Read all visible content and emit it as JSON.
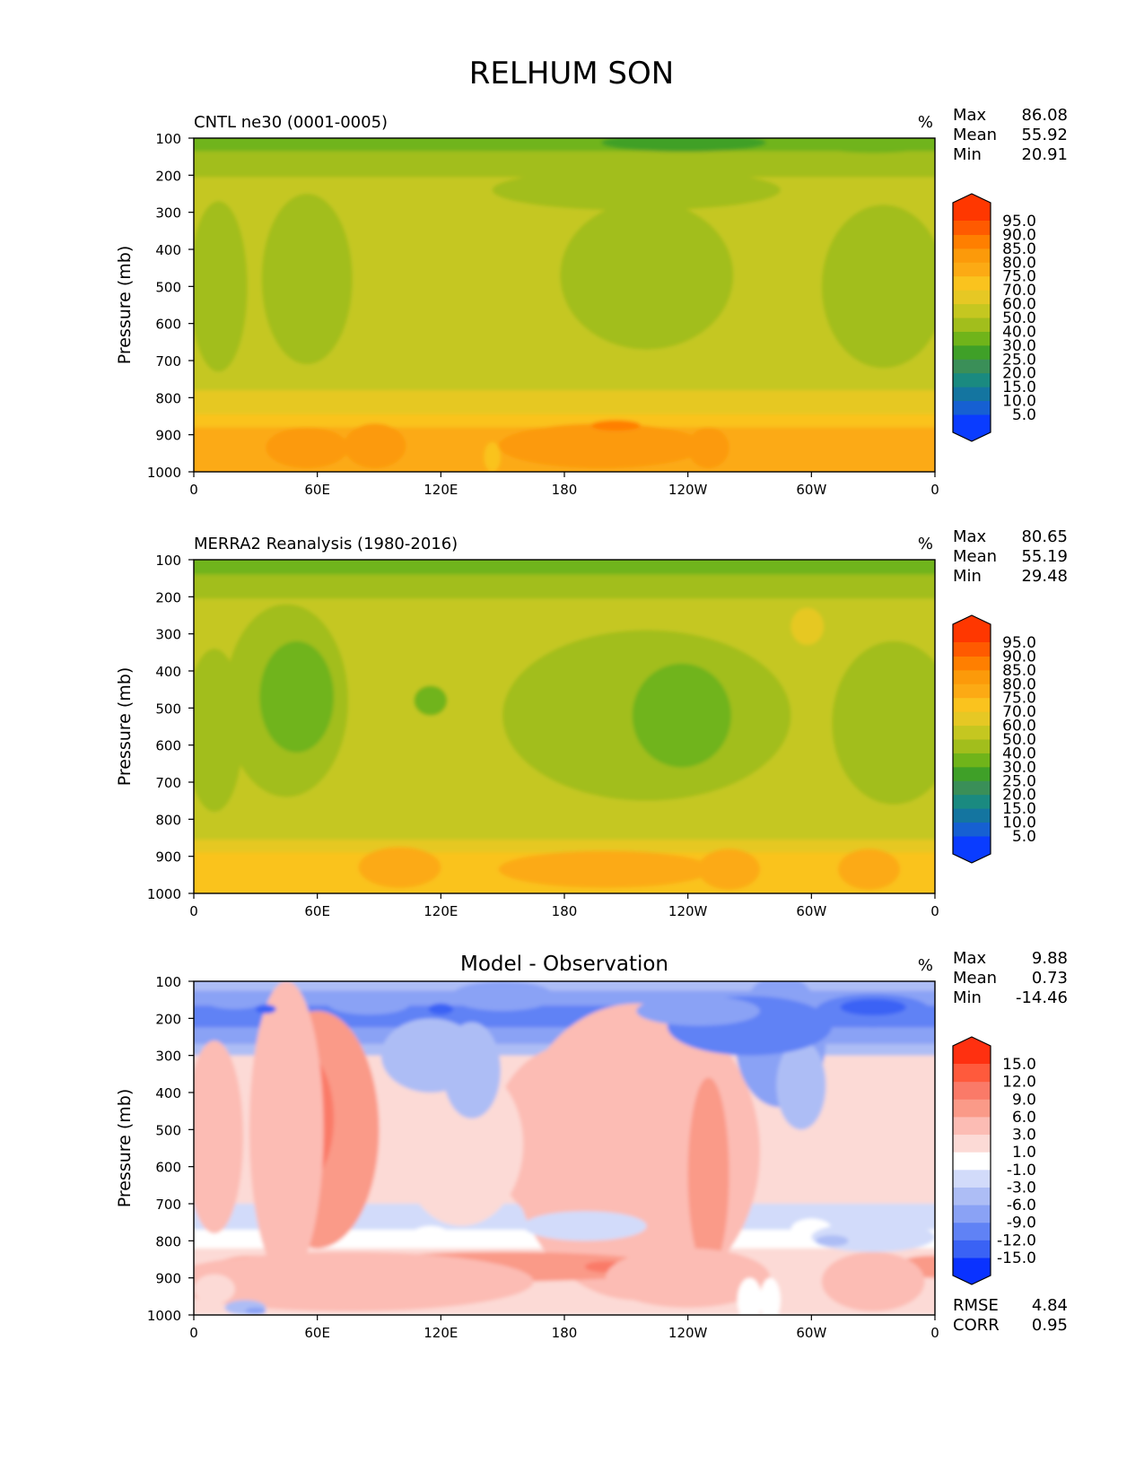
{
  "figure": {
    "title": "RELHUM SON",
    "ylabel": "Pressure (mb)",
    "xticks": [
      "0",
      "60E",
      "120E",
      "180",
      "120W",
      "60W",
      "0"
    ],
    "yticks": [
      "100",
      "200",
      "300",
      "400",
      "500",
      "600",
      "700",
      "800",
      "900",
      "1000"
    ]
  },
  "chart_data": [
    {
      "type": "heatmap",
      "id": "model",
      "title": "CNTL ne30 (0001-0005)",
      "title_position": "left",
      "units": "%",
      "xlabel": "",
      "ylabel": "Pressure (mb)",
      "xlim": [
        0,
        360
      ],
      "ylim": [
        1000,
        100
      ],
      "stats": [
        [
          "Max",
          "86.08"
        ],
        [
          "Mean",
          "55.92"
        ],
        [
          "Min",
          "20.91"
        ]
      ],
      "colorbar": {
        "levels": [
          "5.0",
          "10.0",
          "15.0",
          "20.0",
          "25.0",
          "30.0",
          "40.0",
          "50.0",
          "60.0",
          "70.0",
          "75.0",
          "80.0",
          "85.0",
          "90.0",
          "95.0"
        ],
        "colors": [
          "#0a3cff",
          "#1660d2",
          "#1475a0",
          "#1a8a80",
          "#3a8f58",
          "#3fa028",
          "#70b41a",
          "#a2be1c",
          "#c5c720",
          "#e6c824",
          "#fac31e",
          "#fcaa14",
          "#fc9a0a",
          "#ff7f00",
          "#ff5a00",
          "#ff3700"
        ]
      }
    },
    {
      "type": "heatmap",
      "id": "obs",
      "title": "MERRA2 Reanalysis (1980-2016)",
      "title_position": "left",
      "units": "%",
      "xlabel": "",
      "ylabel": "Pressure (mb)",
      "xlim": [
        0,
        360
      ],
      "ylim": [
        1000,
        100
      ],
      "stats": [
        [
          "Max",
          "80.65"
        ],
        [
          "Mean",
          "55.19"
        ],
        [
          "Min",
          "29.48"
        ]
      ],
      "colorbar": {
        "levels": [
          "5.0",
          "10.0",
          "15.0",
          "20.0",
          "25.0",
          "30.0",
          "40.0",
          "50.0",
          "60.0",
          "70.0",
          "75.0",
          "80.0",
          "85.0",
          "90.0",
          "95.0"
        ],
        "colors": [
          "#0a3cff",
          "#1660d2",
          "#1475a0",
          "#1a8a80",
          "#3a8f58",
          "#3fa028",
          "#70b41a",
          "#a2be1c",
          "#c5c720",
          "#e6c824",
          "#fac31e",
          "#fcaa14",
          "#fc9a0a",
          "#ff7f00",
          "#ff5a00",
          "#ff3700"
        ]
      }
    },
    {
      "type": "heatmap",
      "id": "diff",
      "title": "Model - Observation",
      "title_position": "center",
      "units": "%",
      "xlabel": "",
      "ylabel": "Pressure (mb)",
      "xlim": [
        0,
        360
      ],
      "ylim": [
        1000,
        100
      ],
      "stats": [
        [
          "Max",
          "9.88"
        ],
        [
          "Mean",
          "0.73"
        ],
        [
          "Min",
          "-14.46"
        ]
      ],
      "extra_stats": [
        [
          "RMSE",
          "4.84"
        ],
        [
          "CORR",
          "0.95"
        ]
      ],
      "colorbar": {
        "levels": [
          "-15.0",
          "-12.0",
          "-9.0",
          "-6.0",
          "-3.0",
          "-1.0",
          "1.0",
          "3.0",
          "6.0",
          "9.0",
          "12.0",
          "15.0"
        ],
        "colors": [
          "#0a32ff",
          "#3a62f5",
          "#6082f5",
          "#8aa2f5",
          "#adbdf5",
          "#d2dbfa",
          "#ffffff",
          "#fcdad6",
          "#fcbcb4",
          "#fa9a88",
          "#fa7a68",
          "#ff5a3c",
          "#ff3010"
        ]
      }
    }
  ]
}
